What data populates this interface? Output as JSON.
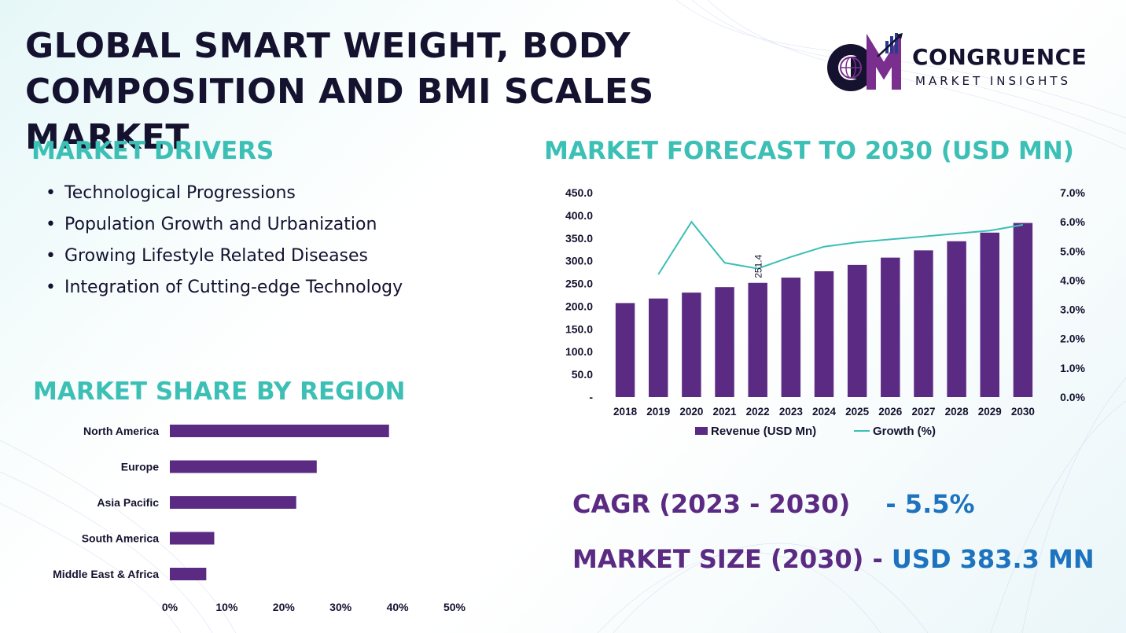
{
  "title_line1": "GLOBAL SMART WEIGHT, BODY",
  "title_line2": "COMPOSITION AND BMI SCALES MARKET",
  "logo": {
    "name": "CONGRUENCE",
    "tagline": "MARKET INSIGHTS",
    "colors": {
      "purple": "#7a2e8e",
      "dark": "#14122f",
      "blue": "#2b3a8f"
    }
  },
  "drivers": {
    "heading": "MARKET DRIVERS",
    "items": [
      "Technological Progressions",
      "Population Growth and Urbanization",
      "Growing Lifestyle Related Diseases",
      "Integration of Cutting-edge Technology"
    ]
  },
  "forecast_heading": "MARKET FORECAST TO 2030 (USD MN)",
  "region_heading": "MARKET SHARE BY REGION",
  "stats": {
    "cagr_label": "CAGR (2023 - 2030)",
    "cagr_sep": "- ",
    "cagr_value": "5.5%",
    "size_label": "MARKET SIZE (2030) - ",
    "size_value": "USD 383.3 MN"
  },
  "colors": {
    "accent": "#3cbfb5",
    "bar": "#5b2a82",
    "line": "#3cbfb5",
    "value": "#1e73be",
    "text": "#14122f"
  },
  "chart_data": [
    {
      "type": "bar",
      "combo_line": true,
      "categories": [
        "2018",
        "2019",
        "2020",
        "2021",
        "2022",
        "2023",
        "2024",
        "2025",
        "2026",
        "2027",
        "2028",
        "2029",
        "2030"
      ],
      "series": [
        {
          "name": "Revenue (USD Mn)",
          "type": "bar",
          "axis": "left",
          "values": [
            207,
            217,
            230,
            242,
            251.4,
            263,
            277,
            291,
            307,
            323,
            343,
            362,
            383.3
          ]
        },
        {
          "name": "Growth (%)",
          "type": "line",
          "axis": "right",
          "values": [
            null,
            4.2,
            6.0,
            4.6,
            4.4,
            4.8,
            5.15,
            5.3,
            5.4,
            5.5,
            5.6,
            5.7,
            5.9
          ]
        }
      ],
      "data_labels": [
        {
          "category": "2022",
          "text": "251.4"
        }
      ],
      "y_ticks": [
        "-",
        "50.0",
        "100.0",
        "150.0",
        "200.0",
        "250.0",
        "300.0",
        "350.0",
        "400.0",
        "450.0"
      ],
      "ylim": [
        0,
        450
      ],
      "y2_ticks": [
        "0.0%",
        "1.0%",
        "2.0%",
        "3.0%",
        "4.0%",
        "5.0%",
        "6.0%",
        "7.0%"
      ],
      "y2lim": [
        0,
        7
      ],
      "legend": "bottom",
      "grid": false
    },
    {
      "type": "bar",
      "orientation": "horizontal",
      "categories": [
        "North America",
        "Europe",
        "Asia Pacific",
        "South America",
        "Middle East & Africa"
      ],
      "values": [
        38.5,
        25.8,
        22.2,
        7.8,
        6.4
      ],
      "x_ticks": [
        "0%",
        "10%",
        "20%",
        "30%",
        "40%",
        "50%"
      ],
      "xlim": [
        0,
        50
      ],
      "grid": false
    }
  ]
}
